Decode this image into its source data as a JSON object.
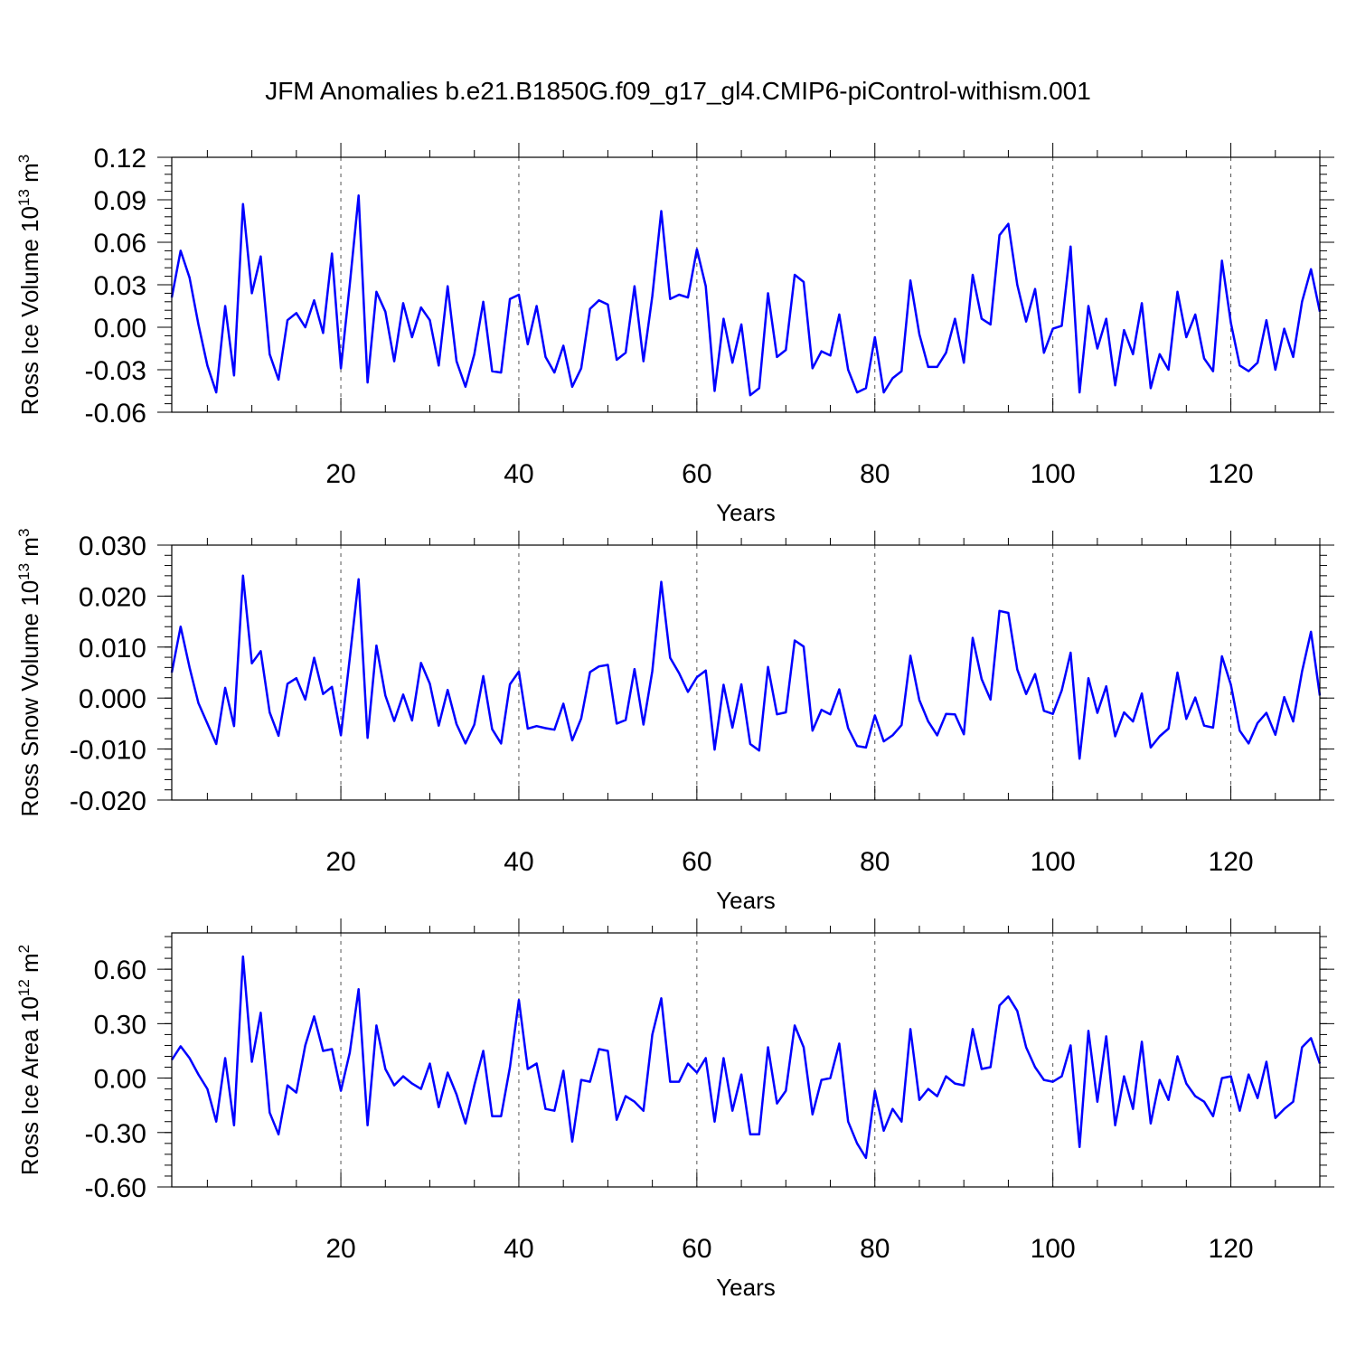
{
  "title": "JFM Anomalies b.e21.B1850G.f09_g17_gl4.CMIP6-piControl-withism.001",
  "line_color": "#0000ff",
  "chart_data": [
    {
      "type": "line",
      "xlabel": "Years",
      "ylabel_main": "Ross Ice Volume 10",
      "ylabel_exp": "13",
      "ylabel_unit": " m",
      "ylabel_unit_exp": "3",
      "xlim": [
        1,
        130
      ],
      "ylim": [
        -0.06,
        0.12
      ],
      "xticks": [
        20,
        40,
        60,
        80,
        100,
        120
      ],
      "xtick_labels": [
        "20",
        "40",
        "60",
        "80",
        "100",
        "120"
      ],
      "yticks": [
        -0.06,
        -0.03,
        0.0,
        0.03,
        0.06,
        0.09,
        0.12
      ],
      "ytick_labels": [
        "-0.06",
        "-0.03",
        "0.00",
        "0.03",
        "0.06",
        "0.09",
        "0.12"
      ],
      "grid": "dashed vertical at major x ticks",
      "values": [
        0.021,
        0.054,
        0.035,
        0.002,
        -0.027,
        -0.046,
        0.015,
        -0.034,
        0.087,
        0.024,
        0.05,
        -0.019,
        -0.037,
        0.005,
        0.01,
        0,
        0.019,
        -0.004,
        0.052,
        -0.029,
        0.03,
        0.093,
        -0.039,
        0.025,
        0.011,
        -0.024,
        0.017,
        -0.007,
        0.014,
        0.005,
        -0.027,
        0.029,
        -0.024,
        -0.042,
        -0.019,
        0.018,
        -0.031,
        -0.032,
        0.02,
        0.023,
        -0.012,
        0.015,
        -0.021,
        -0.032,
        -0.013,
        -0.042,
        -0.029,
        0.013,
        0.019,
        0.016,
        -0.023,
        -0.018,
        0.029,
        -0.024,
        0.022,
        0.082,
        0.02,
        0.023,
        0.021,
        0.055,
        0.029,
        -0.045,
        0.006,
        -0.025,
        0.002,
        -0.048,
        -0.043,
        0.024,
        -0.021,
        -0.016,
        0.037,
        0.032,
        -0.029,
        -0.017,
        -0.02,
        0.009,
        -0.03,
        -0.046,
        -0.043,
        -0.007,
        -0.046,
        -0.036,
        -0.031,
        0.033,
        -0.005,
        -0.028,
        -0.028,
        -0.018,
        0.006,
        -0.025,
        0.037,
        0.006,
        0.002,
        0.065,
        0.073,
        0.03,
        0.004,
        0.027,
        -0.018,
        -0.001,
        0.001,
        0.057,
        -0.046,
        0.015,
        -0.015,
        0.006,
        -0.041,
        -0.002,
        -0.019,
        0.017,
        -0.043,
        -0.019,
        -0.03,
        0.025,
        -0.007,
        0.009,
        -0.022,
        -0.031,
        0.047,
        0.003,
        -0.027,
        -0.031,
        -0.025,
        0.005,
        -0.03,
        -0.001,
        -0.021,
        0.018,
        0.041,
        0.011
      ]
    },
    {
      "type": "line",
      "xlabel": "Years",
      "ylabel_main": "Ross Snow Volume 10",
      "ylabel_exp": "13",
      "ylabel_unit": " m",
      "ylabel_unit_exp": "3",
      "xlim": [
        1,
        130
      ],
      "ylim": [
        -0.02,
        0.03
      ],
      "xticks": [
        20,
        40,
        60,
        80,
        100,
        120
      ],
      "xtick_labels": [
        "20",
        "40",
        "60",
        "80",
        "100",
        "120"
      ],
      "yticks": [
        -0.02,
        -0.01,
        0.0,
        0.01,
        0.02,
        0.03
      ],
      "ytick_labels": [
        "-0.020",
        "-0.010",
        "0.000",
        "0.010",
        "0.020",
        "0.030"
      ],
      "grid": "dashed vertical at major x ticks",
      "values": [
        0.005,
        0.014,
        0.006,
        -0.001,
        -0.005,
        -0.009,
        0.002,
        -0.0055,
        0.024,
        0.0068,
        0.0092,
        -0.0028,
        -0.0074,
        0.0028,
        0.0039,
        -0.0003,
        0.0079,
        0.0008,
        0.0022,
        -0.0073,
        0.0078,
        0.0233,
        -0.0078,
        0.0103,
        0.0005,
        -0.0045,
        0.0007,
        -0.0044,
        0.0069,
        0.0028,
        -0.0054,
        0.0016,
        -0.0051,
        -0.0089,
        -0.0052,
        0.0043,
        -0.0061,
        -0.0089,
        0.0027,
        0.0052,
        -0.006,
        -0.0055,
        -0.0059,
        -0.0062,
        -0.0011,
        -0.0083,
        -0.004,
        0.0051,
        0.0062,
        0.0065,
        -0.005,
        -0.0043,
        0.0057,
        -0.0052,
        0.0053,
        0.0228,
        0.0079,
        0.0049,
        0.0012,
        0.0041,
        0.0054,
        -0.0101,
        0.0026,
        -0.0058,
        0.0027,
        -0.009,
        -0.0103,
        0.0061,
        -0.0032,
        -0.0028,
        0.0113,
        0.0101,
        -0.0064,
        -0.0023,
        -0.0032,
        0.0017,
        -0.0059,
        -0.0094,
        -0.0097,
        -0.0034,
        -0.0085,
        -0.0073,
        -0.0053,
        0.0083,
        -0.0004,
        -0.0046,
        -0.0073,
        -0.0031,
        -0.0032,
        -0.0071,
        0.0118,
        0.0037,
        -0.0003,
        0.0171,
        0.0167,
        0.0056,
        0.0008,
        0.0047,
        -0.0025,
        -0.0031,
        0.0015,
        0.0089,
        -0.0119,
        0.0039,
        -0.0029,
        0.0023,
        -0.0075,
        -0.0028,
        -0.0046,
        0.0009,
        -0.0097,
        -0.0075,
        -0.006,
        0.005,
        -0.0041,
        0.0001,
        -0.0054,
        -0.0058,
        0.0082,
        0.0026,
        -0.0064,
        -0.0089,
        -0.0049,
        -0.0029,
        -0.0072,
        0.0002,
        -0.0046,
        0.0052,
        0.013,
        0.0005
      ]
    },
    {
      "type": "line",
      "xlabel": "Years",
      "ylabel_main": "Ross Ice Area 10",
      "ylabel_exp": "12",
      "ylabel_unit": " m",
      "ylabel_unit_exp": "2",
      "xlim": [
        1,
        130
      ],
      "ylim": [
        -0.6,
        0.8
      ],
      "xticks": [
        20,
        40,
        60,
        80,
        100,
        120
      ],
      "xtick_labels": [
        "20",
        "40",
        "60",
        "80",
        "100",
        "120"
      ],
      "yticks": [
        -0.6,
        -0.3,
        0.0,
        0.3,
        0.6
      ],
      "ytick_labels": [
        "-0.60",
        "-0.30",
        "0.00",
        "0.30",
        "0.60"
      ],
      "grid": "dashed vertical at major x ticks",
      "values": [
        0.1,
        0.175,
        0.11,
        0.02,
        -0.06,
        -0.24,
        0.11,
        -0.26,
        0.67,
        0.09,
        0.36,
        -0.19,
        -0.31,
        -0.04,
        -0.08,
        0.18,
        0.34,
        0.15,
        0.16,
        -0.07,
        0.14,
        0.49,
        -0.26,
        0.29,
        0.05,
        -0.04,
        0.01,
        -0.03,
        -0.06,
        0.08,
        -0.16,
        0.03,
        -0.09,
        -0.25,
        -0.04,
        0.15,
        -0.21,
        -0.21,
        0.06,
        0.43,
        0.05,
        0.08,
        -0.17,
        -0.18,
        0.04,
        -0.35,
        -0.01,
        -0.02,
        0.16,
        0.15,
        -0.23,
        -0.1,
        -0.13,
        -0.18,
        0.24,
        0.44,
        -0.02,
        -0.02,
        0.08,
        0.03,
        0.11,
        -0.24,
        0.11,
        -0.18,
        0.02,
        -0.31,
        -0.31,
        0.17,
        -0.14,
        -0.07,
        0.29,
        0.17,
        -0.2,
        -0.01,
        0,
        0.19,
        -0.24,
        -0.36,
        -0.44,
        -0.07,
        -0.29,
        -0.17,
        -0.24,
        0.27,
        -0.12,
        -0.06,
        -0.1,
        0.01,
        -0.03,
        -0.04,
        0.27,
        0.05,
        0.06,
        0.4,
        0.45,
        0.37,
        0.17,
        0.06,
        -0.01,
        -0.02,
        0.01,
        0.18,
        -0.38,
        0.26,
        -0.13,
        0.23,
        -0.26,
        0.01,
        -0.17,
        0.2,
        -0.25,
        -0.01,
        -0.12,
        0.12,
        -0.03,
        -0.1,
        -0.13,
        -0.21,
        0,
        0.01,
        -0.18,
        0.02,
        -0.11,
        0.09,
        -0.22,
        -0.17,
        -0.13,
        0.17,
        0.22,
        0.08
      ]
    }
  ]
}
